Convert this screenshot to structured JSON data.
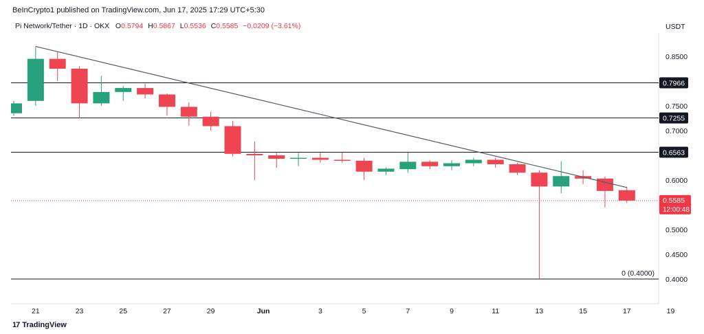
{
  "header": {
    "publisher": "BeInCrypto1 published on TradingView.com, Jun 17, 2025 17:29 UTC+5:30",
    "symbol": "Pi Network/Tether · 1D · OKX",
    "open_label": "O",
    "open": "0.5794",
    "high_label": "H",
    "high": "0.5867",
    "low_label": "L",
    "low": "0.5536",
    "close_label": "C",
    "close": "0.5585",
    "change": "−0.0209 (−3.61%)",
    "currency": "USDT"
  },
  "footer": {
    "brand": "TradingView",
    "brand_mark": "17"
  },
  "colors": {
    "up": "#26a17b",
    "down": "#ef4451",
    "level": "#131722",
    "price_line": "#f23645"
  },
  "chart_data": {
    "type": "candlestick",
    "x_tick_labels": [
      "21",
      "23",
      "25",
      "27",
      "29",
      "Jun",
      "3",
      "5",
      "7",
      "9",
      "11",
      "13",
      "15",
      "17",
      "19"
    ],
    "y_tick_labels": [
      "0.8500",
      "0.7500",
      "0.7000",
      "0.6000",
      "0.5000",
      "0.4500",
      "0.4000"
    ],
    "ylim": [
      0.37,
      0.9
    ],
    "candles": [
      {
        "d": "May 20",
        "o": 0.735,
        "h": 0.76,
        "l": 0.73,
        "c": 0.755
      },
      {
        "d": "May 21",
        "o": 0.76,
        "h": 0.87,
        "l": 0.75,
        "c": 0.845
      },
      {
        "d": "May 22",
        "o": 0.845,
        "h": 0.86,
        "l": 0.8,
        "c": 0.825
      },
      {
        "d": "May 23",
        "o": 0.825,
        "h": 0.83,
        "l": 0.725,
        "c": 0.755
      },
      {
        "d": "May 24",
        "o": 0.755,
        "h": 0.81,
        "l": 0.75,
        "c": 0.778
      },
      {
        "d": "May 25",
        "o": 0.778,
        "h": 0.79,
        "l": 0.76,
        "c": 0.786
      },
      {
        "d": "May 26",
        "o": 0.786,
        "h": 0.795,
        "l": 0.765,
        "c": 0.773
      },
      {
        "d": "May 27",
        "o": 0.773,
        "h": 0.775,
        "l": 0.73,
        "c": 0.748
      },
      {
        "d": "May 28",
        "o": 0.748,
        "h": 0.757,
        "l": 0.71,
        "c": 0.728
      },
      {
        "d": "May 29",
        "o": 0.728,
        "h": 0.738,
        "l": 0.7,
        "c": 0.709
      },
      {
        "d": "May 30",
        "o": 0.709,
        "h": 0.72,
        "l": 0.648,
        "c": 0.653
      },
      {
        "d": "May 31",
        "o": 0.653,
        "h": 0.678,
        "l": 0.6,
        "c": 0.65
      },
      {
        "d": "Jun 1",
        "o": 0.65,
        "h": 0.655,
        "l": 0.625,
        "c": 0.643
      },
      {
        "d": "Jun 2",
        "o": 0.643,
        "h": 0.655,
        "l": 0.628,
        "c": 0.645
      },
      {
        "d": "Jun 3",
        "o": 0.645,
        "h": 0.655,
        "l": 0.635,
        "c": 0.641
      },
      {
        "d": "Jun 4",
        "o": 0.641,
        "h": 0.656,
        "l": 0.635,
        "c": 0.639
      },
      {
        "d": "Jun 5",
        "o": 0.639,
        "h": 0.645,
        "l": 0.6,
        "c": 0.617
      },
      {
        "d": "Jun 6",
        "o": 0.617,
        "h": 0.625,
        "l": 0.61,
        "c": 0.623
      },
      {
        "d": "Jun 7",
        "o": 0.622,
        "h": 0.656,
        "l": 0.615,
        "c": 0.637
      },
      {
        "d": "Jun 8",
        "o": 0.637,
        "h": 0.64,
        "l": 0.622,
        "c": 0.628
      },
      {
        "d": "Jun 9",
        "o": 0.628,
        "h": 0.64,
        "l": 0.62,
        "c": 0.634
      },
      {
        "d": "Jun 10",
        "o": 0.634,
        "h": 0.645,
        "l": 0.628,
        "c": 0.641
      },
      {
        "d": "Jun 11",
        "o": 0.641,
        "h": 0.645,
        "l": 0.625,
        "c": 0.632
      },
      {
        "d": "Jun 12",
        "o": 0.632,
        "h": 0.635,
        "l": 0.61,
        "c": 0.615
      },
      {
        "d": "Jun 13",
        "o": 0.615,
        "h": 0.62,
        "l": 0.4,
        "c": 0.587
      },
      {
        "d": "Jun 14",
        "o": 0.587,
        "h": 0.638,
        "l": 0.573,
        "c": 0.608
      },
      {
        "d": "Jun 15",
        "o": 0.608,
        "h": 0.62,
        "l": 0.592,
        "c": 0.603
      },
      {
        "d": "Jun 16",
        "o": 0.603,
        "h": 0.607,
        "l": 0.545,
        "c": 0.578
      },
      {
        "d": "Jun 17",
        "o": 0.5794,
        "h": 0.5867,
        "l": 0.5536,
        "c": 0.5585
      }
    ],
    "levels": [
      {
        "value": 0.7966,
        "label": "0.7966"
      },
      {
        "value": 0.7255,
        "label": "0.7255"
      },
      {
        "value": 0.6563,
        "label": "0.6563"
      },
      {
        "value": 0.4,
        "label": "0 (0.4000)"
      }
    ],
    "current_price": {
      "value": 0.5585,
      "label": "0.5585",
      "countdown": "12:00:48"
    },
    "trendline": {
      "from": {
        "d": "May 21",
        "v": 0.87
      },
      "to": {
        "d": "Jun 17",
        "v": 0.585
      }
    }
  }
}
